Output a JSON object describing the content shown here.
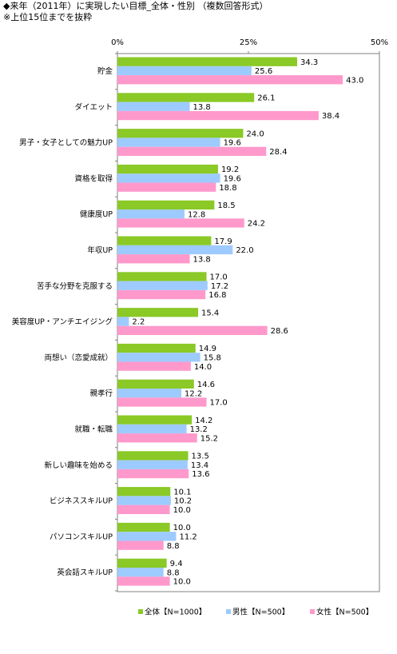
{
  "title": "◆来年（2011年）に実現したい目標_全体・性別 （複数回答形式）",
  "note": "※上位15位までを抜粋",
  "chart_data": {
    "type": "bar",
    "orientation": "horizontal",
    "xlim": [
      0,
      50
    ],
    "ticks": [
      "0%",
      "25%",
      "50%"
    ],
    "tick_values": [
      0,
      25,
      50
    ],
    "categories": [
      "貯金",
      "ダイエット",
      "男子・女子としての魅力UP",
      "資格を取得",
      "健康度UP",
      "年収UP",
      "苦手な分野を克服する",
      "美容度UP・アンチエイジング",
      "両想い（恋愛成就）",
      "親孝行",
      "就職・転職",
      "新しい趣味を始める",
      "ビジネススキルUP",
      "パソコンスキルUP",
      "英会話スキルUP"
    ],
    "series": [
      {
        "name": "全体【N=1000】",
        "color": "#8ac926",
        "values": [
          34.3,
          26.1,
          24.0,
          19.2,
          18.5,
          17.9,
          17.0,
          15.4,
          14.9,
          14.6,
          14.2,
          13.5,
          10.1,
          10.0,
          9.4
        ]
      },
      {
        "name": "男性【N=500】",
        "color": "#9ecbff",
        "values": [
          25.6,
          13.8,
          19.6,
          19.6,
          12.8,
          22.0,
          17.2,
          2.2,
          15.8,
          12.2,
          13.2,
          13.4,
          10.2,
          11.2,
          8.8
        ]
      },
      {
        "name": "女性【N=500】",
        "color": "#ff99cc",
        "values": [
          43.0,
          38.4,
          28.4,
          18.8,
          24.2,
          13.8,
          16.8,
          28.6,
          14.0,
          17.0,
          15.2,
          13.6,
          10.0,
          8.8,
          10.0
        ]
      }
    ],
    "grid": false,
    "legend_position": "bottom"
  }
}
